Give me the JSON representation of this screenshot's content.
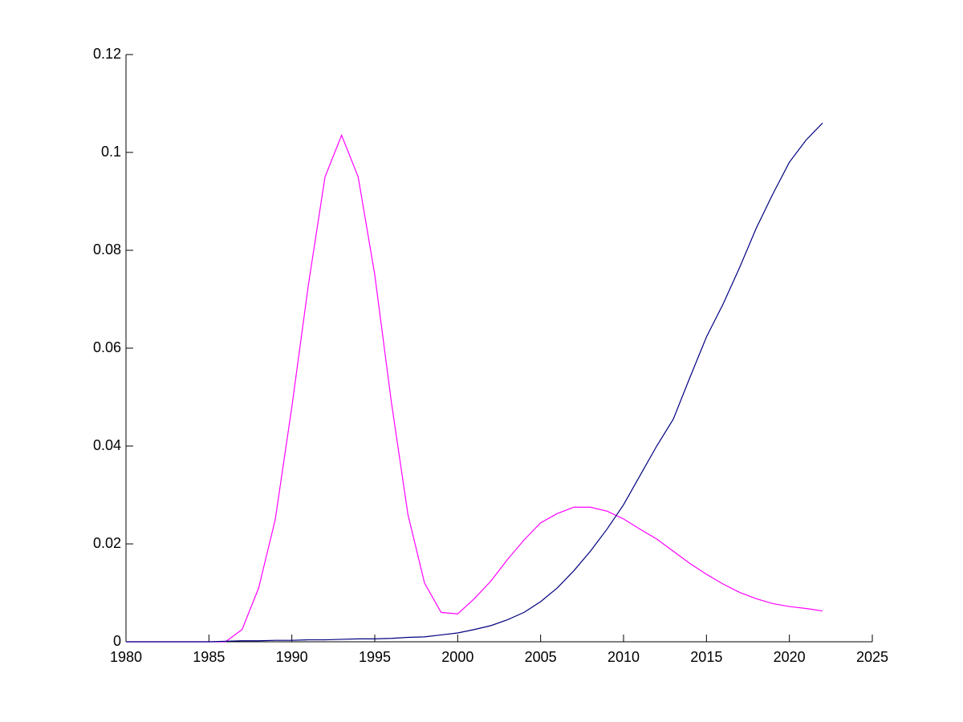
{
  "chart_data": {
    "type": "line",
    "x": [
      1980,
      1981,
      1982,
      1983,
      1984,
      1985,
      1986,
      1987,
      1988,
      1989,
      1990,
      1991,
      1992,
      1993,
      1994,
      1995,
      1996,
      1997,
      1998,
      1999,
      2000,
      2001,
      2002,
      2003,
      2004,
      2005,
      2006,
      2007,
      2008,
      2009,
      2010,
      2011,
      2012,
      2013,
      2014,
      2015,
      2016,
      2017,
      2018,
      2019,
      2020,
      2021,
      2022
    ],
    "series": [
      {
        "color": "#ff00ff",
        "values": [
          0,
          0,
          0,
          0,
          0,
          0,
          0,
          0.0025,
          0.011,
          0.025,
          0.048,
          0.073,
          0.095,
          0.1035,
          0.095,
          0.075,
          0.049,
          0.026,
          0.012,
          0.006,
          0.0057,
          0.0088,
          0.0124,
          0.0168,
          0.0208,
          0.0243,
          0.0262,
          0.0275,
          0.0275,
          0.0267,
          0.0251,
          0.023,
          0.021,
          0.0185,
          0.016,
          0.0138,
          0.0118,
          0.0101,
          0.0088,
          0.0078,
          0.0072,
          0.0068,
          0.0063
        ]
      },
      {
        "color": "#000080",
        "values": [
          0,
          0,
          0,
          0,
          0,
          0,
          0.0001,
          0.0002,
          0.0002,
          0.0003,
          0.0003,
          0.0004,
          0.0004,
          0.0005,
          0.0006,
          0.0006,
          0.0007,
          0.0009,
          0.001,
          0.0014,
          0.0018,
          0.0025,
          0.0033,
          0.0045,
          0.006,
          0.0082,
          0.011,
          0.0145,
          0.0185,
          0.023,
          0.028,
          0.034,
          0.04,
          0.0455,
          0.054,
          0.0623,
          0.069,
          0.0765,
          0.0845,
          0.0915,
          0.098,
          0.1025,
          0.106
        ]
      }
    ],
    "xlim": [
      1980,
      2025
    ],
    "xticks": [
      1980,
      1985,
      1990,
      1995,
      2000,
      2005,
      2010,
      2015,
      2020,
      2025
    ],
    "ylim": [
      0,
      0.12
    ],
    "yticks": [
      0,
      0.02,
      0.04,
      0.06,
      0.08,
      0.1,
      0.12
    ]
  }
}
